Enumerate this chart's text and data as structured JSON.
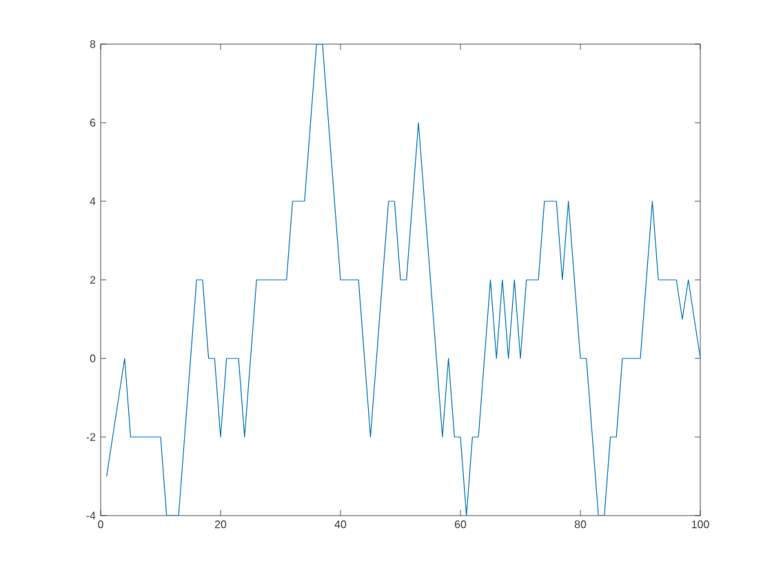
{
  "chart_data": {
    "type": "line",
    "color": "#0072bd",
    "x": [
      1,
      4,
      5,
      10,
      11,
      13,
      16,
      17,
      18,
      19,
      20,
      21,
      23,
      24,
      26,
      31,
      32,
      34,
      36,
      37,
      40,
      43,
      45,
      48,
      49,
      50,
      51,
      53,
      57,
      58,
      59,
      60,
      61,
      62,
      63,
      65,
      66,
      67,
      68,
      69,
      70,
      71,
      73,
      74,
      76,
      77,
      78,
      80,
      81,
      83,
      84,
      85,
      86,
      87,
      90,
      92,
      93,
      96,
      97,
      98,
      100
    ],
    "values": [
      -3,
      0,
      -2,
      -2,
      -4,
      -4,
      2,
      2,
      0,
      0,
      -2,
      0,
      0,
      -2,
      2,
      2,
      4,
      4,
      8,
      8,
      2,
      2,
      -2,
      4,
      4,
      2,
      2,
      6,
      -2,
      0,
      -2,
      -2,
      -4,
      -2,
      -2,
      2,
      0,
      2,
      0,
      2,
      0,
      2,
      2,
      4,
      4,
      2,
      4,
      0,
      0,
      -4,
      -4,
      -2,
      -2,
      0,
      0,
      4,
      2,
      2,
      1,
      2,
      0
    ],
    "xlim": [
      0,
      100
    ],
    "ylim": [
      -4,
      8
    ],
    "xticks": [
      0,
      20,
      40,
      60,
      80,
      100
    ],
    "yticks": [
      -4,
      -2,
      0,
      2,
      4,
      6,
      8
    ],
    "grid": false
  }
}
